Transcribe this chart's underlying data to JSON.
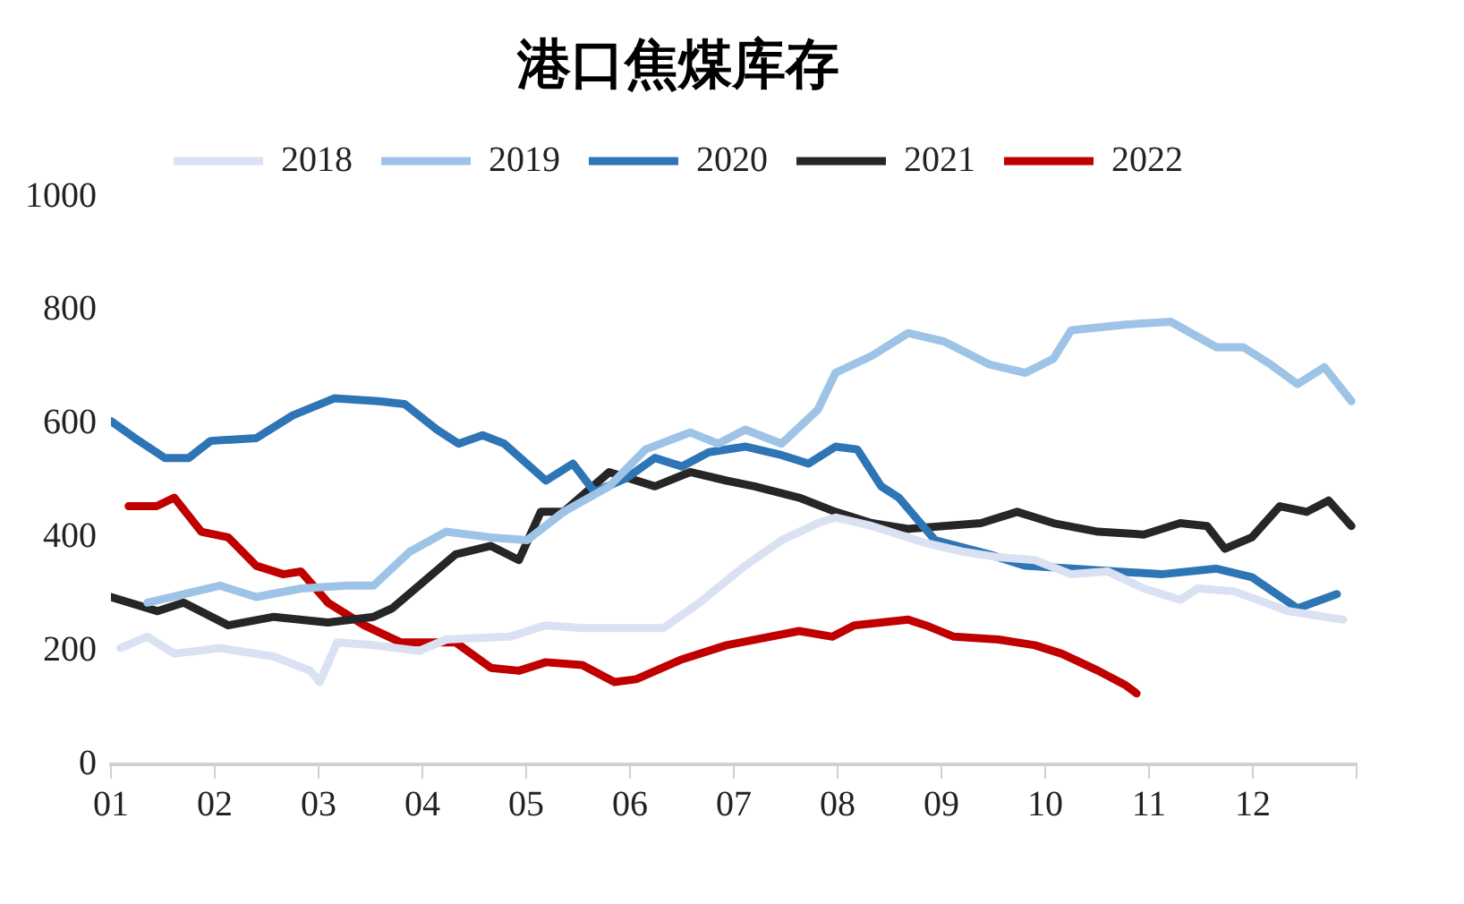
{
  "chart_data": {
    "type": "line",
    "title": "港口焦煤库存",
    "legend": "top",
    "grid": false,
    "marker": "none",
    "line_style": "solid",
    "xlim": [
      1,
      13
    ],
    "xticks": [
      {
        "value": 1,
        "label": "01"
      },
      {
        "value": 2,
        "label": "02"
      },
      {
        "value": 3,
        "label": "03"
      },
      {
        "value": 4,
        "label": "04"
      },
      {
        "value": 5,
        "label": "05"
      },
      {
        "value": 6,
        "label": "06"
      },
      {
        "value": 7,
        "label": "07"
      },
      {
        "value": 8,
        "label": "08"
      },
      {
        "value": 9,
        "label": "09"
      },
      {
        "value": 10,
        "label": "10"
      },
      {
        "value": 11,
        "label": "11"
      },
      {
        "value": 12,
        "label": "12"
      },
      {
        "value": 13,
        "label": null
      }
    ],
    "ylim": [
      0,
      1000
    ],
    "yticks": [
      0,
      200,
      400,
      600,
      800,
      1000
    ],
    "series": [
      {
        "name": "2018",
        "color": "#d9e1f2",
        "x": [
          1.09,
          1.35,
          1.61,
          2.05,
          2.57,
          2.92,
          3.01,
          3.18,
          3.53,
          3.97,
          4.23,
          4.84,
          5.19,
          5.54,
          5.97,
          6.32,
          6.67,
          7.11,
          7.46,
          7.81,
          7.98,
          8.33,
          8.85,
          9.2,
          9.55,
          9.9,
          10.25,
          10.6,
          10.95,
          11.3,
          11.47,
          11.82,
          12.34,
          12.87
        ],
        "values": [
          205,
          225,
          195,
          205,
          190,
          165,
          145,
          215,
          210,
          200,
          220,
          225,
          245,
          240,
          240,
          240,
          285,
          350,
          395,
          425,
          435,
          420,
          390,
          375,
          365,
          360,
          335,
          340,
          310,
          290,
          310,
          305,
          270,
          255
        ]
      },
      {
        "name": "2019",
        "color": "#9dc3e6",
        "x": [
          1.35,
          2.05,
          2.4,
          2.83,
          3.27,
          3.53,
          3.88,
          4.23,
          4.66,
          5.01,
          5.36,
          5.8,
          6.15,
          6.58,
          6.85,
          7.11,
          7.46,
          7.81,
          7.98,
          8.33,
          8.68,
          9.03,
          9.46,
          9.81,
          10.08,
          10.25,
          10.77,
          11.21,
          11.65,
          11.91,
          12.17,
          12.43,
          12.69,
          12.95
        ],
        "values": [
          285,
          315,
          295,
          310,
          315,
          315,
          375,
          410,
          400,
          395,
          445,
          490,
          555,
          585,
          565,
          590,
          565,
          625,
          690,
          720,
          760,
          745,
          705,
          690,
          715,
          765,
          775,
          780,
          735,
          735,
          705,
          670,
          700,
          640
        ]
      },
      {
        "name": "2020",
        "color": "#2e75b6",
        "x": [
          1,
          1.23,
          1.52,
          1.75,
          1.96,
          2.4,
          2.75,
          3.15,
          3.58,
          3.83,
          4.14,
          4.35,
          4.58,
          4.79,
          5.19,
          5.45,
          5.66,
          5.97,
          6.24,
          6.5,
          6.76,
          7.11,
          7.46,
          7.72,
          7.98,
          8.19,
          8.42,
          8.59,
          8.94,
          9.46,
          9.81,
          10.25,
          11.12,
          11.65,
          11.99,
          12.43,
          12.81
        ],
        "values": [
          605,
          575,
          540,
          540,
          570,
          575,
          615,
          645,
          640,
          635,
          590,
          565,
          580,
          565,
          500,
          530,
          480,
          505,
          540,
          525,
          550,
          560,
          545,
          530,
          560,
          555,
          490,
          470,
          395,
          370,
          350,
          345,
          335,
          345,
          330,
          275,
          300
        ]
      },
      {
        "name": "2021",
        "color": "#262626",
        "x": [
          1,
          1.45,
          1.7,
          2.13,
          2.57,
          3.09,
          3.53,
          3.71,
          4.32,
          4.66,
          4.93,
          5.14,
          5.36,
          5.8,
          6.24,
          6.58,
          6.93,
          7.2,
          7.63,
          7.98,
          8.33,
          8.68,
          9.38,
          9.73,
          10.08,
          10.51,
          10.95,
          11.3,
          11.56,
          11.73,
          11.99,
          12.26,
          12.52,
          12.73,
          12.95
        ],
        "values": [
          295,
          270,
          285,
          245,
          260,
          250,
          260,
          275,
          370,
          385,
          360,
          445,
          445,
          515,
          490,
          515,
          500,
          490,
          470,
          445,
          425,
          415,
          425,
          445,
          425,
          410,
          405,
          425,
          420,
          380,
          400,
          455,
          445,
          465,
          420
        ]
      },
      {
        "name": "2022",
        "color": "#c00000",
        "x": [
          1.17,
          1.44,
          1.61,
          1.87,
          2.13,
          2.4,
          2.66,
          2.83,
          3.09,
          3.44,
          3.79,
          4.32,
          4.66,
          4.93,
          5.19,
          5.54,
          5.85,
          6.06,
          6.5,
          6.93,
          7.63,
          7.95,
          8.16,
          8.68,
          8.85,
          9.12,
          9.55,
          9.9,
          10.16,
          10.51,
          10.77,
          10.88
        ],
        "values": [
          455,
          455,
          470,
          410,
          400,
          350,
          335,
          340,
          285,
          245,
          215,
          215,
          170,
          165,
          180,
          175,
          145,
          150,
          185,
          210,
          235,
          225,
          245,
          255,
          245,
          225,
          220,
          210,
          195,
          165,
          140,
          125
        ]
      }
    ]
  }
}
